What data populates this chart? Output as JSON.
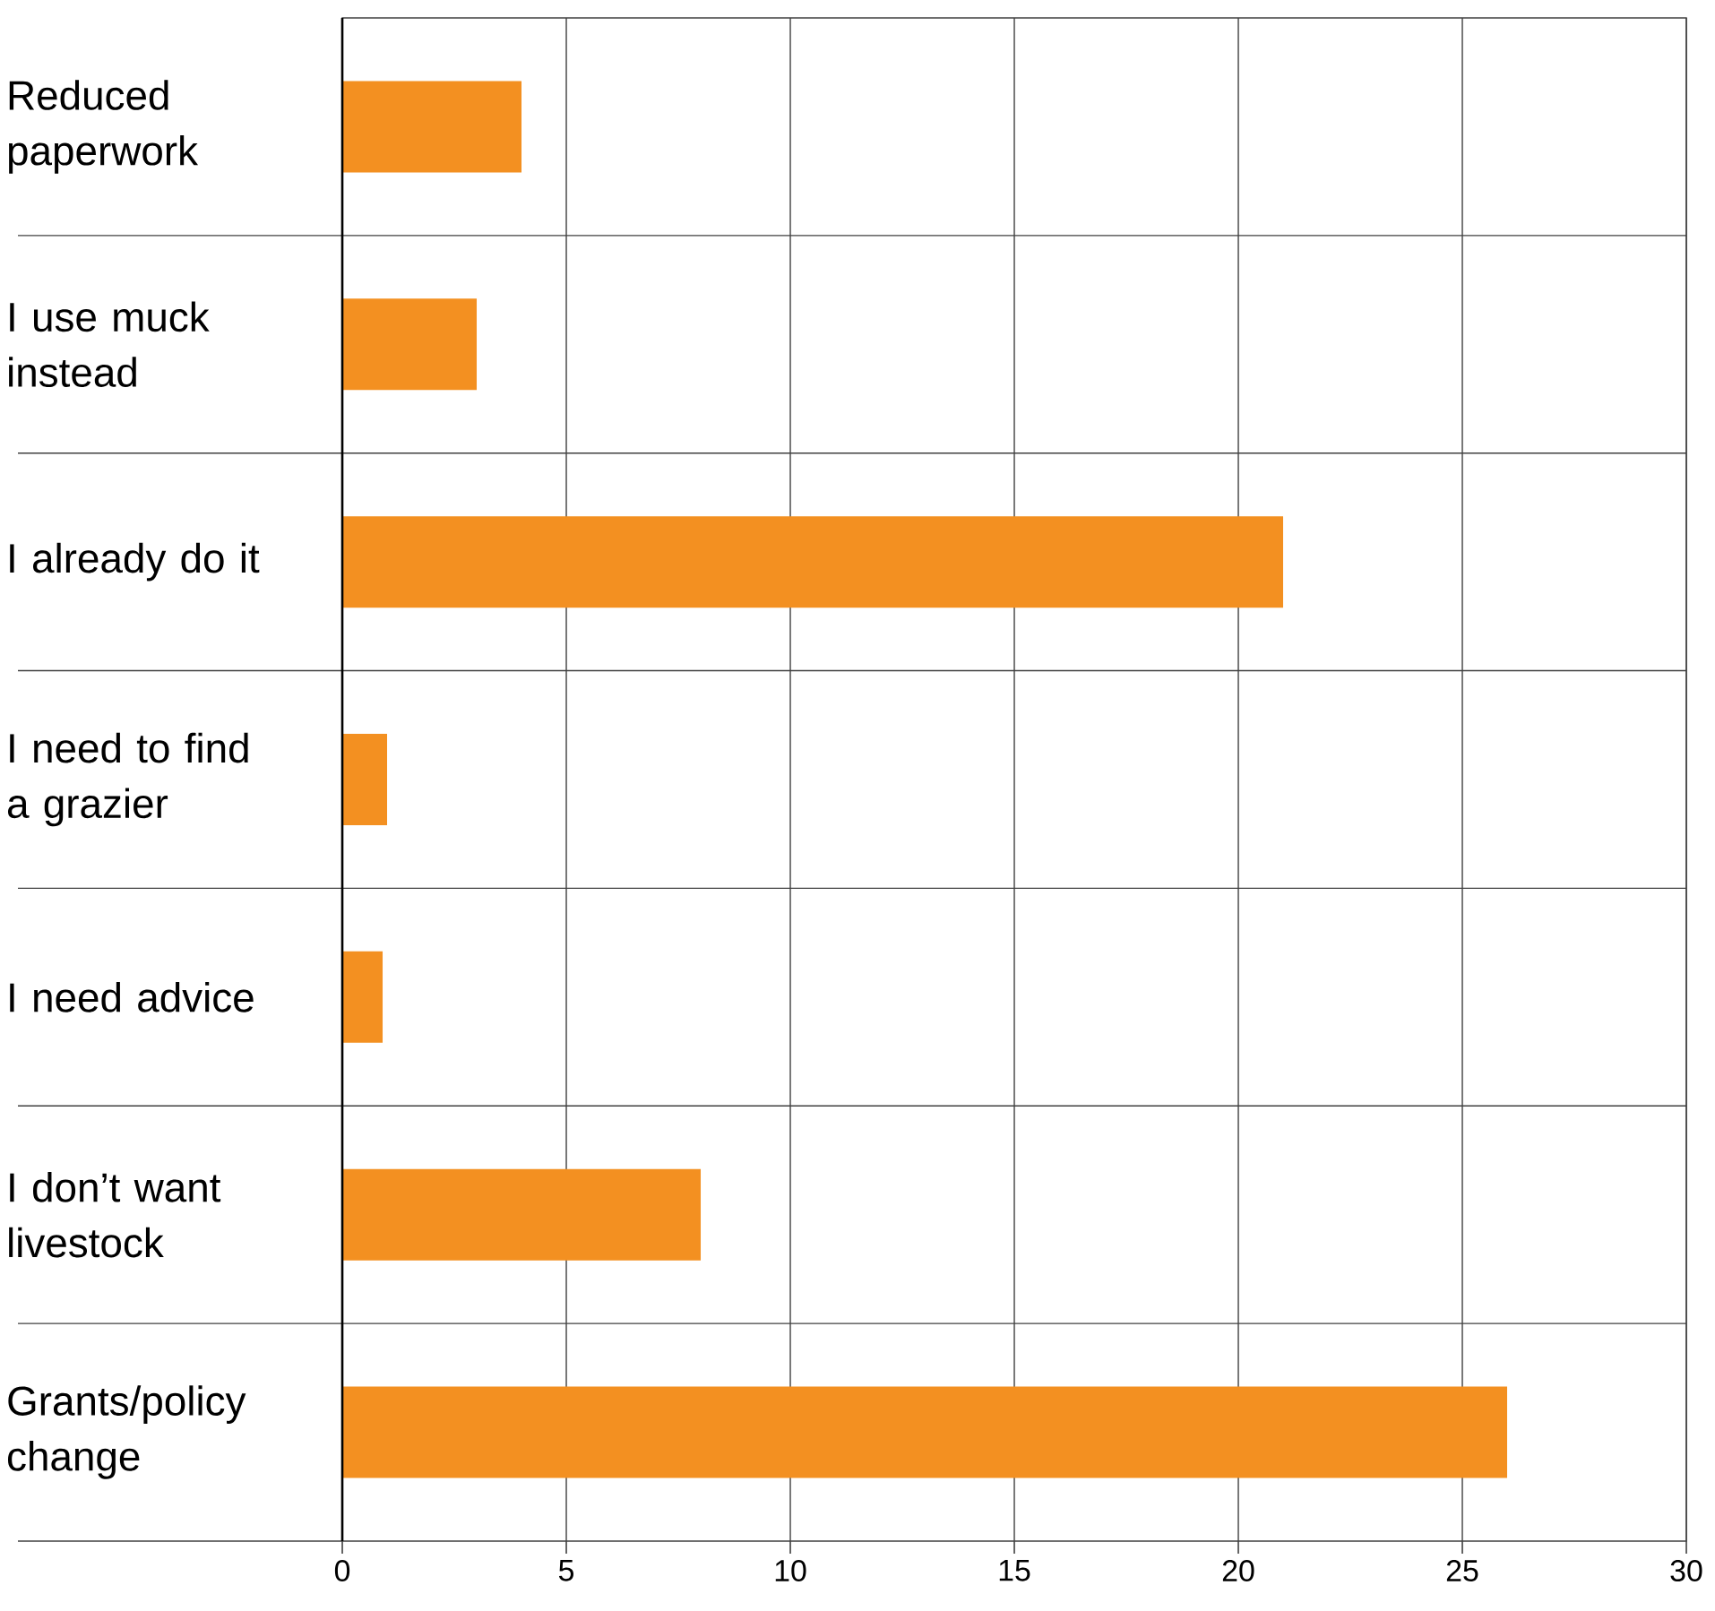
{
  "chart_data": {
    "type": "bar",
    "orientation": "horizontal",
    "categories": [
      "Reduced paperwork",
      "I use muck instead",
      "I already do it",
      "I need to find a grazier",
      "I need advice",
      "I don’t want livestock",
      "Grants/policy change"
    ],
    "values": [
      4,
      3,
      21,
      1,
      0.9,
      8,
      26
    ],
    "color": "#f39021",
    "xlim": [
      0,
      30
    ],
    "xticks": [
      0,
      5,
      10,
      15,
      20,
      25,
      30
    ],
    "grid": true
  }
}
